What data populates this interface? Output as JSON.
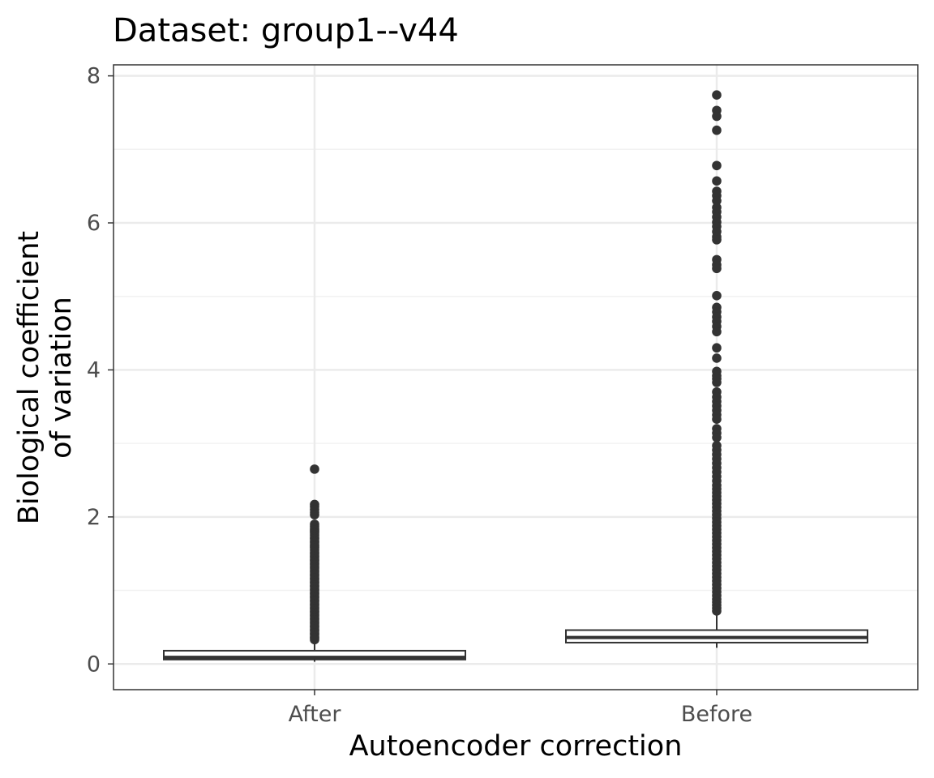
{
  "chart_data": {
    "type": "box",
    "title": "Dataset: group1--v44",
    "xlabel": "Autoencoder correction",
    "ylabel_lines": [
      "Biological coefficient",
      "of variation"
    ],
    "categories": [
      "After",
      "Before"
    ],
    "ylim": [
      -0.35,
      8.15
    ],
    "y_ticks": [
      0,
      2,
      4,
      6,
      8
    ],
    "y_tick_labels": [
      "0",
      "2",
      "4",
      "6",
      "8"
    ],
    "grid": true,
    "legend": "none",
    "boxes": [
      {
        "category": "After",
        "whisker_low": 0.03,
        "q1": 0.06,
        "median": 0.09,
        "q3": 0.18,
        "whisker_high": 0.32,
        "outliers": [
          2.65,
          2.17,
          2.14,
          2.1,
          2.06,
          2.03,
          1.9,
          1.87,
          1.84,
          1.82,
          1.8,
          1.78,
          1.75,
          1.72,
          1.7,
          1.67,
          1.65,
          1.62,
          1.6,
          1.58,
          1.55,
          1.52,
          1.5,
          1.47,
          1.45,
          1.42,
          1.4,
          1.37,
          1.35,
          1.32,
          1.3,
          1.27,
          1.25,
          1.22,
          1.2,
          1.17,
          1.15,
          1.12,
          1.1,
          1.07,
          1.05,
          1.02,
          1.0,
          0.97,
          0.95,
          0.92,
          0.9,
          0.87,
          0.85,
          0.82,
          0.8,
          0.77,
          0.75,
          0.72,
          0.7,
          0.67,
          0.65,
          0.62,
          0.6,
          0.57,
          0.55,
          0.52,
          0.5,
          0.47,
          0.45,
          0.42,
          0.4,
          0.37,
          0.35,
          0.33
        ]
      },
      {
        "category": "Before",
        "whisker_low": 0.22,
        "q1": 0.29,
        "median": 0.36,
        "q3": 0.46,
        "whisker_high": 0.7,
        "outliers": [
          7.74,
          7.53,
          7.45,
          7.26,
          6.78,
          6.57,
          6.43,
          6.37,
          6.3,
          6.21,
          6.15,
          6.08,
          6.01,
          5.95,
          5.88,
          5.81,
          5.77,
          5.5,
          5.43,
          5.38,
          5.01,
          4.85,
          4.79,
          4.72,
          4.66,
          4.59,
          4.52,
          4.3,
          4.16,
          3.98,
          3.92,
          3.88,
          3.83,
          3.7,
          3.63,
          3.57,
          3.51,
          3.45,
          3.39,
          3.33,
          3.2,
          3.14,
          3.08,
          2.97,
          2.91,
          2.85,
          2.79,
          2.73,
          2.67,
          2.61,
          2.55,
          2.49,
          2.43,
          2.38,
          2.33,
          2.28,
          2.23,
          2.18,
          2.13,
          2.08,
          2.03,
          1.98,
          1.93,
          1.88,
          1.83,
          1.78,
          1.73,
          1.68,
          1.63,
          1.58,
          1.53,
          1.48,
          1.43,
          1.38,
          1.33,
          1.28,
          1.23,
          1.18,
          1.13,
          1.08,
          1.03,
          0.98,
          0.93,
          0.88,
          0.84,
          0.8,
          0.76,
          0.72
        ]
      }
    ]
  },
  "colors": {
    "background": "#ffffff",
    "panel_border": "#333333",
    "grid_major": "#ebebeb",
    "grid_minor": "#f2f2f2",
    "box_line": "#333333",
    "box_fill": "#ffffff",
    "point": "#333333",
    "tick_label": "#4d4d4d",
    "text": "#000000"
  }
}
